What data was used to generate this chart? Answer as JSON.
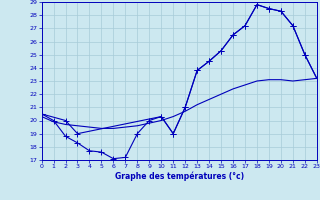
{
  "title": "Graphe des températures (°c)",
  "bg_color": "#cce8f0",
  "grid_color": "#a8ccd8",
  "line_color": "#0000bb",
  "ylim": [
    17,
    29
  ],
  "xlim": [
    0,
    23
  ],
  "yticks": [
    17,
    18,
    19,
    20,
    21,
    22,
    23,
    24,
    25,
    26,
    27,
    28,
    29
  ],
  "xticks": [
    0,
    1,
    2,
    3,
    4,
    5,
    6,
    7,
    8,
    9,
    10,
    11,
    12,
    13,
    14,
    15,
    16,
    17,
    18,
    19,
    20,
    21,
    22,
    23
  ],
  "line1_x": [
    0,
    1,
    2,
    3,
    4,
    5,
    6,
    7,
    8,
    9,
    10,
    11,
    12,
    13,
    14,
    15,
    16,
    17,
    18,
    19,
    20,
    21,
    22,
    23
  ],
  "line1_y": [
    20.5,
    20.0,
    18.8,
    18.3,
    17.7,
    17.6,
    17.1,
    17.2,
    19.0,
    20.0,
    20.3,
    19.0,
    21.0,
    23.8,
    24.5,
    25.3,
    26.5,
    27.2,
    28.8,
    28.5,
    28.3,
    27.2,
    25.0,
    23.2
  ],
  "line2_x": [
    0,
    1,
    2,
    3,
    4,
    5,
    6,
    7,
    8,
    9,
    10,
    11,
    12,
    13,
    14,
    15,
    16,
    17,
    18,
    19,
    20,
    21,
    22,
    23
  ],
  "line2_y": [
    20.3,
    19.9,
    19.7,
    19.6,
    19.5,
    19.4,
    19.4,
    19.5,
    19.6,
    19.8,
    20.0,
    20.3,
    20.7,
    21.2,
    21.6,
    22.0,
    22.4,
    22.7,
    23.0,
    23.1,
    23.1,
    23.0,
    23.1,
    23.2
  ],
  "line3_x": [
    0,
    2,
    3,
    10,
    11,
    12,
    13,
    14,
    15,
    16,
    17,
    18,
    19,
    20,
    21,
    22,
    23
  ],
  "line3_y": [
    20.5,
    20.0,
    19.0,
    20.3,
    19.0,
    21.0,
    23.8,
    24.5,
    25.3,
    26.5,
    27.2,
    28.8,
    28.5,
    28.3,
    27.2,
    25.0,
    23.2
  ]
}
